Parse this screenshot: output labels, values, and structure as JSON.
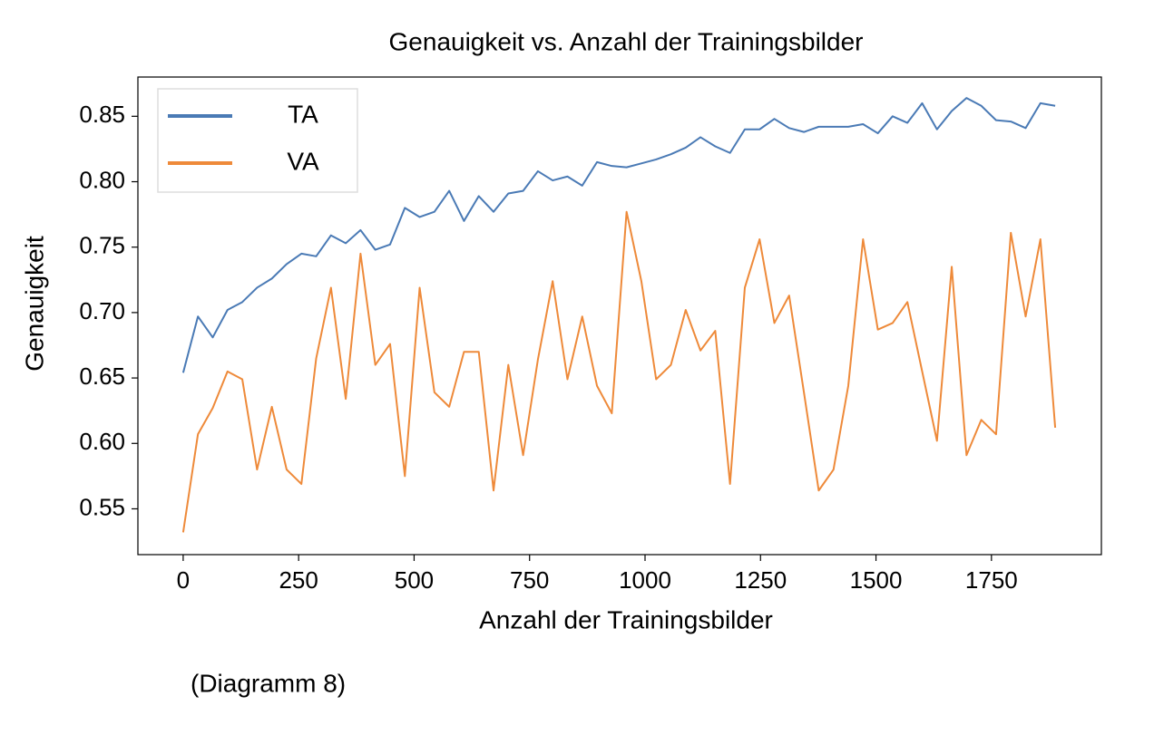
{
  "chart_data": {
    "type": "line",
    "title": "Genauigkeit vs. Anzahl der Trainingsbilder",
    "xlabel": "Anzahl der Trainingsbilder",
    "ylabel": "Genauigkeit",
    "caption": "(Diagramm 8)",
    "x": [
      0,
      32,
      64,
      96,
      128,
      160,
      192,
      224,
      256,
      288,
      320,
      352,
      384,
      416,
      448,
      480,
      512,
      544,
      576,
      608,
      640,
      672,
      704,
      736,
      768,
      800,
      832,
      864,
      896,
      928,
      960,
      992,
      1024,
      1056,
      1088,
      1120,
      1152,
      1184,
      1216,
      1248,
      1280,
      1312,
      1344,
      1376,
      1408,
      1440,
      1472,
      1504,
      1536,
      1568,
      1600,
      1632,
      1664,
      1696,
      1728,
      1760,
      1792,
      1824,
      1856,
      1888
    ],
    "series": [
      {
        "name": "TA",
        "color": "#4a7ab5",
        "values": [
          0.654,
          0.697,
          0.681,
          0.702,
          0.708,
          0.719,
          0.726,
          0.737,
          0.745,
          0.743,
          0.759,
          0.753,
          0.763,
          0.748,
          0.752,
          0.78,
          0.773,
          0.777,
          0.793,
          0.77,
          0.789,
          0.777,
          0.791,
          0.793,
          0.808,
          0.801,
          0.804,
          0.797,
          0.815,
          0.812,
          0.811,
          0.814,
          0.817,
          0.821,
          0.826,
          0.834,
          0.827,
          0.822,
          0.84,
          0.84,
          0.848,
          0.841,
          0.838,
          0.842,
          0.842,
          0.842,
          0.844,
          0.837,
          0.85,
          0.845,
          0.86,
          0.84,
          0.854,
          0.864,
          0.858,
          0.847,
          0.846,
          0.841,
          0.86,
          0.858
        ]
      },
      {
        "name": "VA",
        "color": "#ee8a3a",
        "values": [
          0.532,
          0.607,
          0.627,
          0.655,
          0.649,
          0.58,
          0.628,
          0.58,
          0.569,
          0.665,
          0.719,
          0.634,
          0.745,
          0.66,
          0.676,
          0.575,
          0.719,
          0.639,
          0.628,
          0.67,
          0.67,
          0.564,
          0.66,
          0.591,
          0.664,
          0.724,
          0.649,
          0.697,
          0.644,
          0.623,
          0.777,
          0.724,
          0.649,
          0.66,
          0.702,
          0.671,
          0.686,
          0.569,
          0.719,
          0.756,
          0.692,
          0.713,
          0.639,
          0.564,
          0.58,
          0.644,
          0.756,
          0.687,
          0.692,
          0.708,
          0.655,
          0.602,
          0.735,
          0.591,
          0.618,
          0.607,
          0.761,
          0.697,
          0.756,
          0.612
        ]
      }
    ],
    "xlim": [
      -98,
      1988
    ],
    "ylim": [
      0.515,
      0.88
    ],
    "xticks": [
      0,
      250,
      500,
      750,
      1000,
      1250,
      1500,
      1750
    ],
    "yticks": [
      0.55,
      {
        "value": 0.6,
        "label": "0.60"
      },
      0.65,
      {
        "value": 0.7,
        "label": "0.70"
      },
      0.75,
      {
        "value": 0.8,
        "label": "0.80"
      },
      0.85
    ],
    "legend": "upper left"
  }
}
